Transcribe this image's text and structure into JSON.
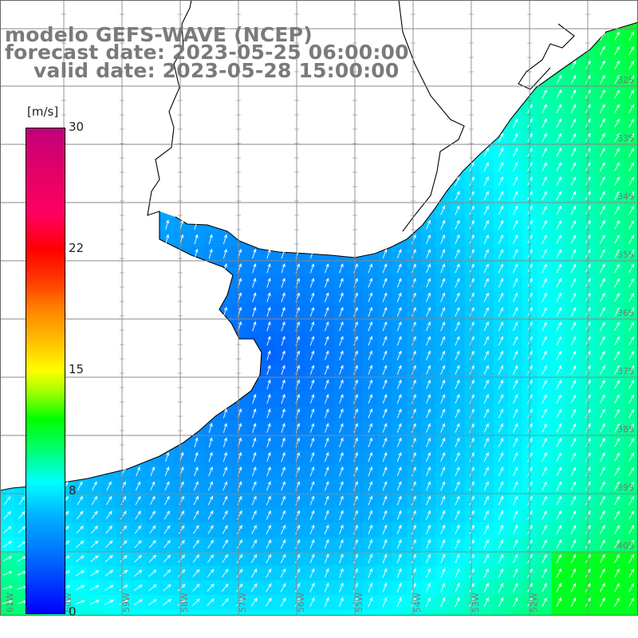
{
  "title": {
    "model": "modelo GEFS-WAVE (NCEP)",
    "forecast": "forecast date: 2023-05-25 06:00:00",
    "valid": "valid date: 2023-05-28 15:00:00"
  },
  "colorbar": {
    "unit": "[m/s]",
    "min": 0,
    "max": 30,
    "ticks": [
      "30",
      "22",
      "15",
      "8",
      "0"
    ],
    "tick_values": [
      30,
      22,
      15,
      8,
      0
    ]
  },
  "grid": {
    "lat_labels": [
      "32S",
      "33S",
      "34S",
      "35S",
      "36S",
      "37S",
      "38S",
      "39S",
      "40S"
    ],
    "lon_labels": [
      "61W",
      "60W",
      "59W",
      "58W",
      "57W",
      "56W",
      "55W",
      "54W",
      "53W",
      "52W"
    ]
  },
  "colors": {
    "land": "#ffffff",
    "coast": "#000000",
    "grid": "#888888",
    "label": "#7a7a7a",
    "arrow": "#ffffff"
  },
  "field": {
    "direction": "north-northeast (wind toward NNE in the north, ENE in the southwest)",
    "speed_range_ms": [
      0,
      10
    ]
  }
}
